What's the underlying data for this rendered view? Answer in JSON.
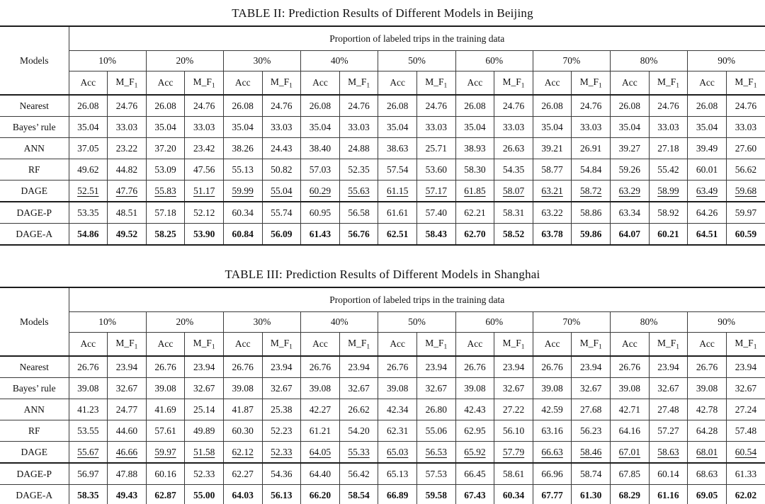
{
  "tables": [
    {
      "title": "TABLE II: Prediction Results of Different Models in Beijing",
      "header": {
        "models_label": "Models",
        "span_label": "Proportion of labeled trips in the training data",
        "proportions": [
          "10%",
          "20%",
          "30%",
          "40%",
          "50%",
          "60%",
          "70%",
          "80%",
          "90%"
        ],
        "metrics": {
          "acc": "Acc",
          "f1": "M_F",
          "f1_sub": "1"
        }
      },
      "rows": [
        {
          "model": "Nearest",
          "emphasis": "none",
          "rule_above": false,
          "values": [
            "26.08",
            "24.76",
            "26.08",
            "24.76",
            "26.08",
            "24.76",
            "26.08",
            "24.76",
            "26.08",
            "24.76",
            "26.08",
            "24.76",
            "26.08",
            "24.76",
            "26.08",
            "24.76",
            "26.08",
            "24.76"
          ]
        },
        {
          "model": "Bayes’ rule",
          "emphasis": "none",
          "rule_above": false,
          "values": [
            "35.04",
            "33.03",
            "35.04",
            "33.03",
            "35.04",
            "33.03",
            "35.04",
            "33.03",
            "35.04",
            "33.03",
            "35.04",
            "33.03",
            "35.04",
            "33.03",
            "35.04",
            "33.03",
            "35.04",
            "33.03"
          ]
        },
        {
          "model": "ANN",
          "emphasis": "none",
          "rule_above": false,
          "values": [
            "37.05",
            "23.22",
            "37.20",
            "23.42",
            "38.26",
            "24.43",
            "38.40",
            "24.88",
            "38.63",
            "25.71",
            "38.93",
            "26.63",
            "39.21",
            "26.91",
            "39.27",
            "27.18",
            "39.49",
            "27.60"
          ]
        },
        {
          "model": "RF",
          "emphasis": "none",
          "rule_above": false,
          "values": [
            "49.62",
            "44.82",
            "53.09",
            "47.56",
            "55.13",
            "50.82",
            "57.03",
            "52.35",
            "57.54",
            "53.60",
            "58.30",
            "54.35",
            "58.77",
            "54.84",
            "59.26",
            "55.42",
            "60.01",
            "56.62"
          ]
        },
        {
          "model": "DAGE",
          "emphasis": "underline",
          "rule_above": false,
          "values": [
            "52.51",
            "47.76",
            "55.83",
            "51.17",
            "59.99",
            "55.04",
            "60.29",
            "55.63",
            "61.15",
            "57.17",
            "61.85",
            "58.07",
            "63.21",
            "58.72",
            "63.29",
            "58.99",
            "63.49",
            "59.68"
          ]
        },
        {
          "model": "DAGE-P",
          "emphasis": "none",
          "rule_above": true,
          "values": [
            "53.35",
            "48.51",
            "57.18",
            "52.12",
            "60.34",
            "55.74",
            "60.95",
            "56.58",
            "61.61",
            "57.40",
            "62.21",
            "58.31",
            "63.22",
            "58.86",
            "63.34",
            "58.92",
            "64.26",
            "59.97"
          ]
        },
        {
          "model": "DAGE-A",
          "emphasis": "bold",
          "rule_above": false,
          "values": [
            "54.86",
            "49.52",
            "58.25",
            "53.90",
            "60.84",
            "56.09",
            "61.43",
            "56.76",
            "62.51",
            "58.43",
            "62.70",
            "58.52",
            "63.78",
            "59.86",
            "64.07",
            "60.21",
            "64.51",
            "60.59"
          ]
        }
      ]
    },
    {
      "title": "TABLE III: Prediction Results of Different Models in Shanghai",
      "header": {
        "models_label": "Models",
        "span_label": "Proportion of labeled trips in the training data",
        "proportions": [
          "10%",
          "20%",
          "30%",
          "40%",
          "50%",
          "60%",
          "70%",
          "80%",
          "90%"
        ],
        "metrics": {
          "acc": "Acc",
          "f1": "M_F",
          "f1_sub": "1"
        }
      },
      "rows": [
        {
          "model": "Nearest",
          "emphasis": "none",
          "rule_above": false,
          "values": [
            "26.76",
            "23.94",
            "26.76",
            "23.94",
            "26.76",
            "23.94",
            "26.76",
            "23.94",
            "26.76",
            "23.94",
            "26.76",
            "23.94",
            "26.76",
            "23.94",
            "26.76",
            "23.94",
            "26.76",
            "23.94"
          ]
        },
        {
          "model": "Bayes’ rule",
          "emphasis": "none",
          "rule_above": false,
          "values": [
            "39.08",
            "32.67",
            "39.08",
            "32.67",
            "39.08",
            "32.67",
            "39.08",
            "32.67",
            "39.08",
            "32.67",
            "39.08",
            "32.67",
            "39.08",
            "32.67",
            "39.08",
            "32.67",
            "39.08",
            "32.67"
          ]
        },
        {
          "model": "ANN",
          "emphasis": "none",
          "rule_above": false,
          "values": [
            "41.23",
            "24.77",
            "41.69",
            "25.14",
            "41.87",
            "25.38",
            "42.27",
            "26.62",
            "42.34",
            "26.80",
            "42.43",
            "27.22",
            "42.59",
            "27.68",
            "42.71",
            "27.48",
            "42.78",
            "27.24"
          ]
        },
        {
          "model": "RF",
          "emphasis": "none",
          "rule_above": false,
          "values": [
            "53.55",
            "44.60",
            "57.61",
            "49.89",
            "60.30",
            "52.23",
            "61.21",
            "54.20",
            "62.31",
            "55.06",
            "62.95",
            "56.10",
            "63.16",
            "56.23",
            "64.16",
            "57.27",
            "64.28",
            "57.48"
          ]
        },
        {
          "model": "DAGE",
          "emphasis": "underline",
          "rule_above": false,
          "values": [
            "55.67",
            "46.66",
            "59.97",
            "51.58",
            "62.12",
            "52.33",
            "64.05",
            "55.33",
            "65.03",
            "56.53",
            "65.92",
            "57.79",
            "66.63",
            "58.46",
            "67.01",
            "58.63",
            "68.01",
            "60.54"
          ]
        },
        {
          "model": "DAGE-P",
          "emphasis": "none",
          "rule_above": true,
          "values": [
            "56.97",
            "47.88",
            "60.16",
            "52.33",
            "62.27",
            "54.36",
            "64.40",
            "56.42",
            "65.13",
            "57.53",
            "66.45",
            "58.61",
            "66.96",
            "58.74",
            "67.85",
            "60.14",
            "68.63",
            "61.33"
          ]
        },
        {
          "model": "DAGE-A",
          "emphasis": "bold",
          "rule_above": false,
          "values": [
            "58.35",
            "49.43",
            "62.87",
            "55.00",
            "64.03",
            "56.13",
            "66.20",
            "58.54",
            "66.89",
            "59.58",
            "67.43",
            "60.34",
            "67.77",
            "61.30",
            "68.29",
            "61.16",
            "69.05",
            "62.02"
          ]
        }
      ]
    }
  ]
}
